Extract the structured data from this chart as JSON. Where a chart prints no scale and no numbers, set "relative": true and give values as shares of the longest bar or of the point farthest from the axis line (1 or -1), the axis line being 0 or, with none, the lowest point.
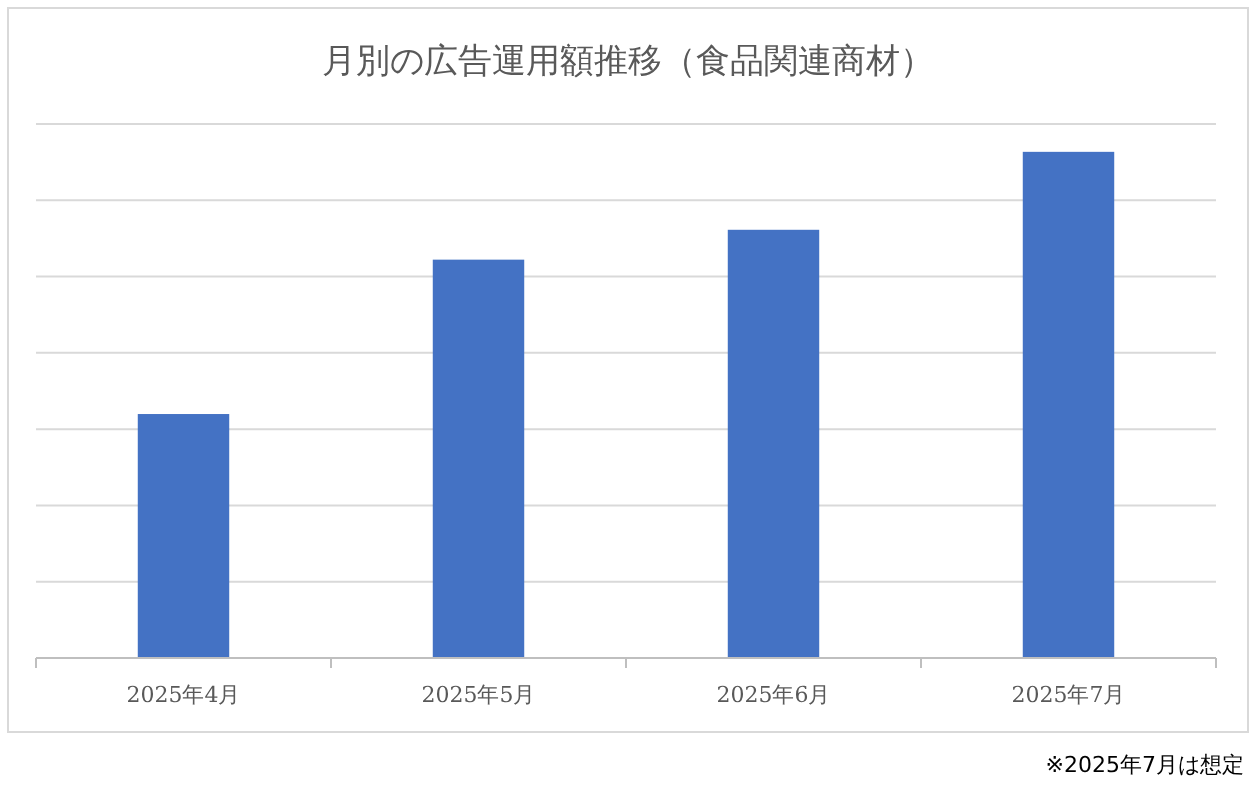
{
  "chart_data": {
    "type": "bar",
    "title": "月別の広告運用額推移（食品関連商材）",
    "categories": [
      "2025年4月",
      "2025年5月",
      "2025年6月",
      "2025年7月"
    ],
    "values": [
      0.482,
      0.787,
      0.846,
      1
    ],
    "color": "#4472c4",
    "relative": true,
    "grid": "y",
    "annotations": [
      "※2025年7月は想定"
    ]
  }
}
